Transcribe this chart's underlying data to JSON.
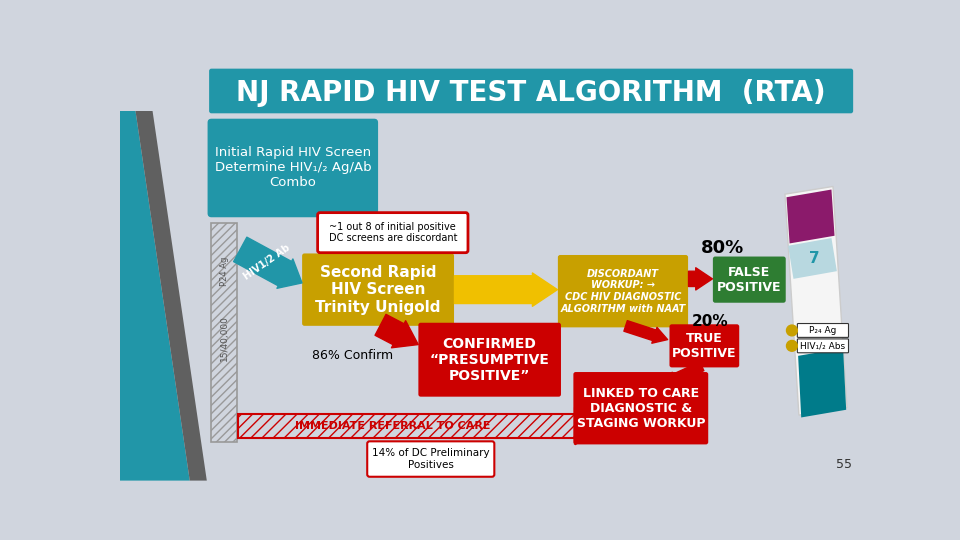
{
  "title": "NJ RAPID HIV TEST ALGORITHM  (RTA)",
  "title_bg": "#2196a8",
  "title_color": "#ffffff",
  "bg_color": "#d0d5de",
  "initial_box_text": "Initial Rapid HIV Screen\nDetermine HIV₁/₂ Ag/Ab\nCombo",
  "initial_box_bg": "#2196a8",
  "initial_box_color": "#ffffff",
  "note_text": "~1 out 8 of initial positive\nDC screens are discordant",
  "note_border": "#cc0000",
  "note_bg": "#ffffff",
  "second_screen_text": "Second Rapid\nHIV Screen\nTrinity Unigold",
  "second_screen_bg": "#c8a000",
  "second_screen_color": "#ffffff",
  "discordant_text": "DISCORDANT\nWORKUP: →\nCDC HIV DIAGNOSTIC\nALGORITHM with NAAT",
  "discordant_bg": "#c8a000",
  "discordant_color": "#ffffff",
  "false_pos_text": "FALSE\nPOSITIVE",
  "false_pos_bg": "#2e7d32",
  "false_pos_color": "#ffffff",
  "confirmed_text": "CONFIRMED\n“PRESUMPTIVE\nPOSITIVE”",
  "confirmed_bg": "#cc0000",
  "confirmed_color": "#ffffff",
  "true_pos_text": "TRUE\nPOSITIVE",
  "true_pos_bg": "#cc0000",
  "true_pos_color": "#ffffff",
  "linked_text": "LINKED TO CARE\nDIAGNOSTIC &\nSTAGING WORKUP",
  "linked_bg": "#cc0000",
  "linked_color": "#ffffff",
  "immediate_text": "IMMEDIATE REFERRAL TO CARE",
  "pct_80": "80%",
  "pct_20": "20%",
  "pct_86": "86% Confirm",
  "pct_14_text": "14% of DC Preliminary\nPositives",
  "slide_num": "55",
  "blue_stripe_color": "#2196a8",
  "gray_stripe_color": "#606060",
  "hatch_color": "#aaaaaa",
  "gold_arrow_color": "#f0c000",
  "red_color": "#cc0000",
  "green_color": "#2e7d32",
  "strip_white": "#f5f5f5",
  "strip_purple": "#8b1a6b",
  "strip_teal": "#007b8a",
  "strip_gold": "#c8a000"
}
